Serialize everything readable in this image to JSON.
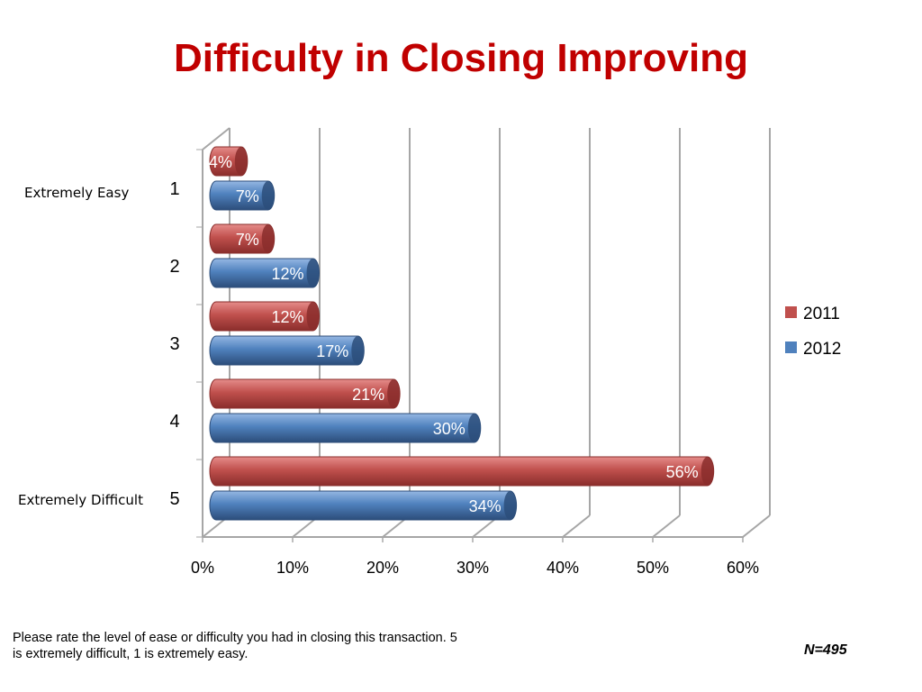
{
  "title": "Difficulty in Closing Improving",
  "side_labels": {
    "top": "Extremely Easy",
    "bottom": "Extremely Difficult"
  },
  "footnote": "Please rate the level of ease or difficulty you had in closing this transaction. 5 is extremely difficult, 1 is extremely easy.",
  "n_label": "N=495",
  "chart_data": {
    "type": "bar",
    "orientation": "horizontal",
    "categories": [
      "1",
      "2",
      "3",
      "4",
      "5"
    ],
    "series": [
      {
        "name": "2011",
        "values": [
          4,
          7,
          12,
          21,
          56
        ],
        "labels": [
          "4%",
          "7%",
          "12%",
          "21%",
          "56%"
        ],
        "color": "#c0504d"
      },
      {
        "name": "2012",
        "values": [
          7,
          12,
          17,
          30,
          34
        ],
        "labels": [
          "7%",
          "12%",
          "17%",
          "30%",
          "34%"
        ],
        "color": "#4f81bd"
      }
    ],
    "xticks": [
      "0%",
      "10%",
      "20%",
      "30%",
      "40%",
      "50%",
      "60%"
    ],
    "xlim": [
      0,
      60
    ],
    "grid": true,
    "legend_position": "right"
  }
}
